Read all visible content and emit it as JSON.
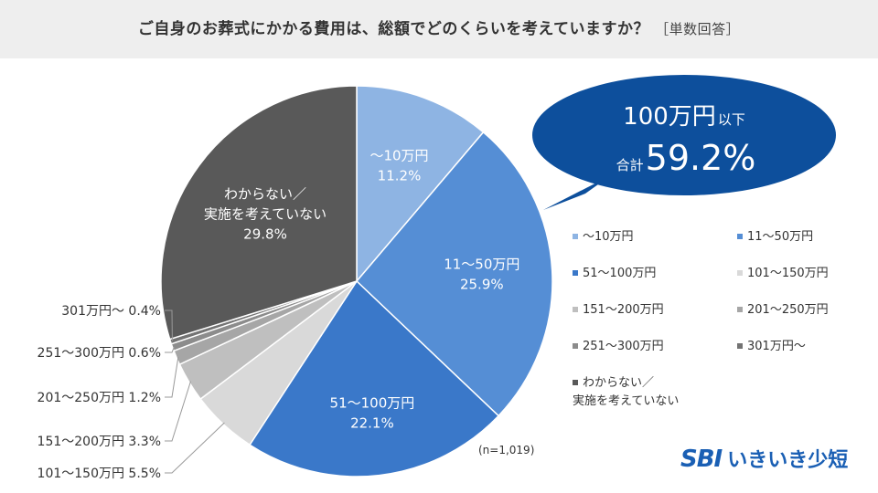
{
  "title": "ご自身のお葬式にかかる費用は、総額でどのくらいを考えていますか？",
  "title_suffix": "［単数回答］",
  "chart_data": {
    "type": "pie",
    "title": "ご自身のお葬式にかかる費用は、総額でどのくらいを考えていますか？",
    "slices": [
      {
        "label": "～10万円",
        "display": [
          "～10万円"
        ],
        "value": 11.2,
        "value_label": "11.2%",
        "color": "#8eb4e3"
      },
      {
        "label": "11～50万円",
        "display": [
          "11～50万円"
        ],
        "value": 25.9,
        "value_label": "25.9%",
        "color": "#558ed5"
      },
      {
        "label": "51～100万円",
        "display": [
          "51～100万円"
        ],
        "value": 22.1,
        "value_label": "22.1%",
        "color": "#3a78c9"
      },
      {
        "label": "101～150万円",
        "display": [
          "101～150万円"
        ],
        "value": 5.5,
        "value_label": "5.5%",
        "color": "#d9d9d9"
      },
      {
        "label": "151～200万円",
        "display": [
          "151～200万円"
        ],
        "value": 3.3,
        "value_label": "3.3%",
        "color": "#bfbfbf"
      },
      {
        "label": "201～250万円",
        "display": [
          "201～250万円"
        ],
        "value": 1.2,
        "value_label": "1.2%",
        "color": "#a6a6a6"
      },
      {
        "label": "251～300万円",
        "display": [
          "251～300万円"
        ],
        "value": 0.6,
        "value_label": "0.6%",
        "color": "#8c8c8c"
      },
      {
        "label": "301万円～",
        "display": [
          "301万円～"
        ],
        "value": 0.4,
        "value_label": "0.4%",
        "color": "#737373"
      },
      {
        "label": "わからない／実施を考えていない",
        "display": [
          "わからない／",
          "実施を考えていない"
        ],
        "value": 29.8,
        "value_label": "29.8%",
        "color": "#595959"
      }
    ],
    "legend_position": "right",
    "sample_note": "(n=1,019)"
  },
  "callout": {
    "line1_main": "100万円",
    "line1_small": "以下",
    "line2_small": "合計",
    "line2_main": "59.2%",
    "fill": "#0d4f9c"
  },
  "logo": {
    "sbi": "SBI",
    "name": "いきいき少短"
  }
}
